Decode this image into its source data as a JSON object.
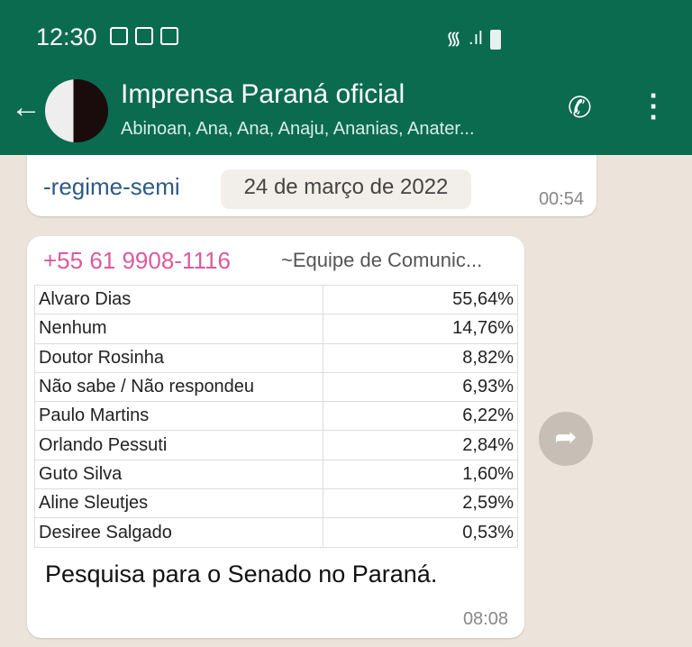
{
  "status_bar": {
    "time": "12:30"
  },
  "header": {
    "title": "Imprensa Paraná oficial",
    "subtitle": "Abinoan, Ana, Ana, Anaju, Ananias, Anater...",
    "accent": "#0b6b4f"
  },
  "messages": [
    {
      "text": "-regime-semi",
      "time": "00:54"
    },
    {
      "sender": "+55 61 9908-1116",
      "sender_name": "~Equipe de Comunic...",
      "table": [
        [
          "Alvaro Dias",
          "55,64%"
        ],
        [
          "Nenhum",
          "14,76%"
        ],
        [
          "Doutor Rosinha",
          "8,82%"
        ],
        [
          "Não sabe / Não respondeu",
          "6,93%"
        ],
        [
          "Paulo Martins",
          "6,22%"
        ],
        [
          "Orlando Pessuti",
          "2,84%"
        ],
        [
          "Guto Silva",
          "1,60%"
        ],
        [
          "Aline Sleutjes",
          "2,59%"
        ],
        [
          "Desiree Salgado",
          "0,53%"
        ]
      ],
      "caption": "Pesquisa para o Senado no Paraná.",
      "time": "08:08"
    }
  ],
  "date_pill": "24 de março de 2022"
}
